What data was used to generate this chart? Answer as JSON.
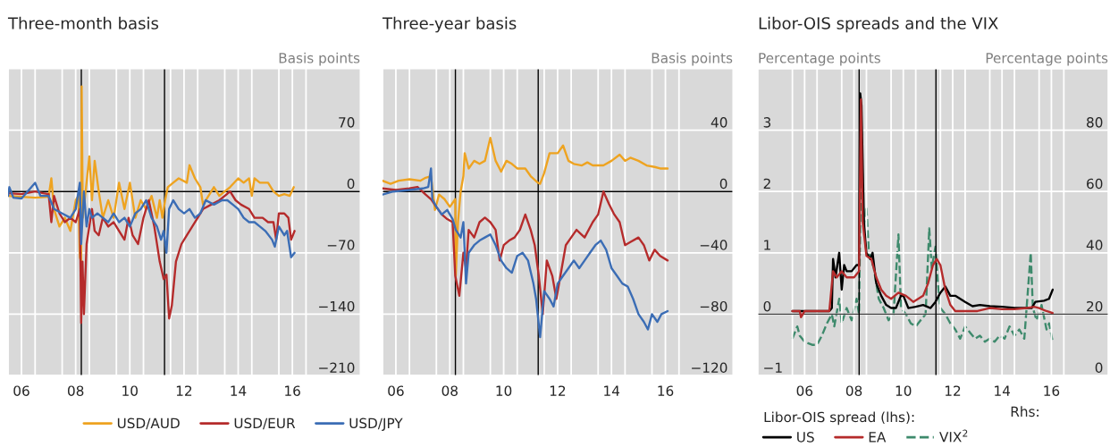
{
  "chart_data": [
    {
      "type": "line",
      "title": "Three-month basis",
      "ylabel": "Basis points",
      "xlim": [
        "2006-01-01",
        "2019-01-01"
      ],
      "ylim": [
        -210,
        140
      ],
      "xticks": [
        {
          "value": "2006-01-01",
          "label": null
        },
        {
          "value": "2007-01-01",
          "label": null
        },
        {
          "value": "2008-01-01",
          "label": null
        },
        {
          "value": "2009-01-01",
          "label": null
        },
        {
          "value": "2010-01-01",
          "label": null
        },
        {
          "value": "2011-01-01",
          "label": null
        },
        {
          "value": "2012-01-01",
          "label": null
        },
        {
          "value": "2013-01-01",
          "label": null
        },
        {
          "value": "2014-01-01",
          "label": null
        },
        {
          "value": "2015-01-01",
          "label": null
        },
        {
          "value": "2016-01-01",
          "label": null
        },
        {
          "value": "2017-01-01",
          "label": null
        },
        {
          "value": "2006-07-01",
          "label": "06"
        },
        {
          "value": "2008-07-01",
          "label": "08"
        },
        {
          "value": "2010-07-01",
          "label": "10"
        },
        {
          "value": "2012-07-01",
          "label": "12"
        },
        {
          "value": "2014-07-01",
          "label": "14"
        },
        {
          "value": "2016-07-01",
          "label": "16"
        }
      ],
      "yticks": [
        70,
        0,
        -70,
        -140,
        -210
      ],
      "grid": true,
      "legend": "bottom",
      "ref_lines": [
        {
          "axis": "y",
          "value": 0,
          "color": "#000000"
        },
        {
          "axis": "x",
          "value": "2008-09-15",
          "color": "#000000"
        },
        {
          "axis": "x",
          "value": "2011-10-12",
          "color": "#000000"
        }
      ],
      "series": [
        {
          "name": "USD/AUD",
          "color": "#eea320",
          "x": [
            "2006-01-01",
            "2006-07-02",
            "2007-01-01",
            "2007-07-02",
            "2007-08-08",
            "2007-09-13",
            "2007-11-25",
            "2008-02-06",
            "2008-04-20",
            "2008-07-02",
            "2008-08-08",
            "2008-08-26",
            "2008-09-13",
            "2008-09-20",
            "2008-10-05",
            "2009-01-01",
            "2009-02-06",
            "2009-03-14",
            "2009-05-08",
            "2009-07-02",
            "2009-09-13",
            "2009-11-25",
            "2010-02-06",
            "2010-04-20",
            "2010-07-02",
            "2010-09-13",
            "2010-11-25",
            "2011-02-06",
            "2011-04-20",
            "2011-07-02",
            "2011-08-08",
            "2011-09-13",
            "2011-10-20",
            "2011-11-25",
            "2012-02-06",
            "2012-04-20",
            "2012-08-08",
            "2012-09-13",
            "2012-11-25",
            "2013-02-06",
            "2013-03-14",
            "2013-05-27",
            "2013-08-08",
            "2013-10-20",
            "2014-01-01",
            "2014-03-14",
            "2014-07-02",
            "2014-09-13",
            "2014-11-25",
            "2015-01-01",
            "2015-02-06",
            "2015-04-20",
            "2015-08-08",
            "2015-10-20",
            "2016-01-01",
            "2016-03-14",
            "2016-05-27",
            "2016-07-20"
          ],
          "values": [
            -5,
            -6,
            -7,
            -6,
            15,
            -20,
            -40,
            -30,
            -45,
            -10,
            -5,
            -75,
            -80,
            120,
            -30,
            40,
            -10,
            35,
            0,
            -30,
            -10,
            -30,
            10,
            -20,
            10,
            -30,
            -10,
            -20,
            -5,
            -30,
            -10,
            -30,
            -10,
            5,
            10,
            15,
            10,
            30,
            15,
            5,
            -15,
            -5,
            5,
            -5,
            0,
            5,
            15,
            10,
            15,
            -5,
            15,
            10,
            10,
            0,
            -5,
            -3,
            -5,
            5
          ]
        },
        {
          "name": "USD/EUR",
          "color": "#b52b2b",
          "x": [
            "2006-01-01",
            "2006-07-02",
            "2007-01-01",
            "2007-04-20",
            "2007-07-02",
            "2007-08-08",
            "2007-09-13",
            "2007-11-25",
            "2008-02-06",
            "2008-04-20",
            "2008-07-02",
            "2008-08-26",
            "2008-09-13",
            "2008-10-01",
            "2008-10-20",
            "2008-11-25",
            "2009-01-01",
            "2009-02-06",
            "2009-03-14",
            "2009-05-08",
            "2009-07-02",
            "2009-09-13",
            "2009-11-25",
            "2010-02-06",
            "2010-04-20",
            "2010-06-14",
            "2010-08-08",
            "2010-10-20",
            "2011-01-01",
            "2011-03-14",
            "2011-05-27",
            "2011-08-08",
            "2011-10-01",
            "2011-11-07",
            "2011-12-13",
            "2012-01-19",
            "2012-03-14",
            "2012-05-27",
            "2012-08-08",
            "2012-10-20",
            "2013-01-01",
            "2013-03-14",
            "2013-07-02",
            "2013-10-20",
            "2014-01-01",
            "2014-03-14",
            "2014-05-27",
            "2014-08-08",
            "2014-11-25",
            "2015-02-06",
            "2015-05-27",
            "2015-08-08",
            "2015-10-20",
            "2015-11-25",
            "2016-01-01",
            "2016-03-14",
            "2016-05-08",
            "2016-06-14",
            "2016-07-31"
          ],
          "values": [
            -2,
            -3,
            0,
            -2,
            -3,
            -35,
            -5,
            -25,
            -35,
            -30,
            -35,
            -20,
            -150,
            -80,
            -140,
            -60,
            -40,
            -20,
            -45,
            -50,
            -30,
            -40,
            -35,
            -45,
            -55,
            -30,
            -50,
            -60,
            -30,
            -10,
            -40,
            -80,
            -100,
            -95,
            -145,
            -130,
            -80,
            -60,
            -50,
            -40,
            -30,
            -20,
            -15,
            -10,
            -5,
            0,
            -10,
            -15,
            -20,
            -30,
            -30,
            -35,
            -35,
            -55,
            -25,
            -25,
            -30,
            -55,
            -45
          ]
        },
        {
          "name": "USD/JPY",
          "color": "#3b6db5",
          "x": [
            "2006-01-01",
            "2006-01-19",
            "2006-03-14",
            "2006-07-02",
            "2007-01-01",
            "2007-03-14",
            "2007-07-02",
            "2007-09-13",
            "2008-01-01",
            "2008-04-20",
            "2008-07-02",
            "2008-08-26",
            "2008-09-13",
            "2008-10-20",
            "2008-11-25",
            "2009-01-01",
            "2009-02-06",
            "2009-04-20",
            "2009-07-02",
            "2009-09-13",
            "2009-11-25",
            "2010-02-06",
            "2010-04-20",
            "2010-07-02",
            "2010-09-13",
            "2010-11-25",
            "2011-02-06",
            "2011-04-20",
            "2011-07-02",
            "2011-08-26",
            "2011-10-01",
            "2011-11-07",
            "2011-12-13",
            "2012-02-06",
            "2012-04-20",
            "2012-07-02",
            "2012-09-13",
            "2012-11-25",
            "2013-02-06",
            "2013-04-20",
            "2013-08-08",
            "2013-11-25",
            "2014-02-06",
            "2014-04-20",
            "2014-07-02",
            "2014-09-13",
            "2014-11-25",
            "2015-02-06",
            "2015-04-20",
            "2015-07-02",
            "2015-10-01",
            "2015-11-07",
            "2016-01-01",
            "2016-03-14",
            "2016-04-20",
            "2016-06-14",
            "2016-07-31"
          ],
          "values": [
            -5,
            5,
            -7,
            -8,
            10,
            -5,
            -5,
            -20,
            -25,
            -30,
            -20,
            10,
            -60,
            0,
            -40,
            -20,
            -30,
            -25,
            -30,
            -35,
            -25,
            -35,
            -30,
            -40,
            -25,
            -20,
            -10,
            -30,
            -40,
            -55,
            -45,
            -70,
            -20,
            -10,
            -20,
            -25,
            -20,
            -30,
            -25,
            -10,
            -15,
            -10,
            -10,
            -15,
            -20,
            -30,
            -35,
            -35,
            -40,
            -45,
            -55,
            -63,
            -40,
            -50,
            -45,
            -75,
            -70
          ]
        }
      ]
    },
    {
      "type": "line",
      "title": "Three-year basis",
      "ylabel": "Basis points",
      "xlim": [
        "2006-01-01",
        "2019-01-01"
      ],
      "ylim": [
        -120,
        80
      ],
      "xticks": [
        {
          "value": "2006-01-01",
          "label": null
        },
        {
          "value": "2007-01-01",
          "label": null
        },
        {
          "value": "2008-01-01",
          "label": null
        },
        {
          "value": "2009-01-01",
          "label": null
        },
        {
          "value": "2010-01-01",
          "label": null
        },
        {
          "value": "2011-01-01",
          "label": null
        },
        {
          "value": "2012-01-01",
          "label": null
        },
        {
          "value": "2013-01-01",
          "label": null
        },
        {
          "value": "2014-01-01",
          "label": null
        },
        {
          "value": "2015-01-01",
          "label": null
        },
        {
          "value": "2016-01-01",
          "label": null
        },
        {
          "value": "2017-01-01",
          "label": null
        },
        {
          "value": "2006-07-01",
          "label": "06"
        },
        {
          "value": "2008-07-01",
          "label": "08"
        },
        {
          "value": "2010-07-01",
          "label": "10"
        },
        {
          "value": "2012-07-01",
          "label": "12"
        },
        {
          "value": "2014-07-01",
          "label": "14"
        },
        {
          "value": "2016-07-01",
          "label": "16"
        }
      ],
      "yticks": [
        40,
        0,
        -40,
        -80,
        -120
      ],
      "grid": true,
      "ref_lines": [
        {
          "axis": "y",
          "value": 0,
          "color": "#000000"
        },
        {
          "axis": "x",
          "value": "2008-09-15",
          "color": "#000000"
        },
        {
          "axis": "x",
          "value": "2011-10-12",
          "color": "#000000"
        }
      ],
      "series": [
        {
          "color": "#eea320",
          "x": [
            "2006-01-01",
            "2006-04-20",
            "2006-08-08",
            "2007-01-01",
            "2007-05-27",
            "2007-08-08",
            "2007-10-20",
            "2007-12-13",
            "2008-02-06",
            "2008-04-20",
            "2008-07-02",
            "2008-09-13",
            "2008-09-20",
            "2008-10-20",
            "2008-11-25",
            "2009-01-01",
            "2009-01-19",
            "2009-03-14",
            "2009-05-27",
            "2009-08-08",
            "2009-10-20",
            "2010-01-01",
            "2010-03-14",
            "2010-05-27",
            "2010-08-08",
            "2010-10-20",
            "2011-01-01",
            "2011-04-20",
            "2011-07-02",
            "2011-10-01",
            "2011-11-07",
            "2012-01-01",
            "2012-03-14",
            "2012-07-02",
            "2012-09-13",
            "2012-11-25",
            "2013-02-06",
            "2013-05-27",
            "2013-08-08",
            "2013-10-20",
            "2014-01-01",
            "2014-03-14",
            "2014-07-02",
            "2014-10-20",
            "2015-01-01",
            "2015-03-14",
            "2015-07-02",
            "2015-10-20",
            "2016-02-06",
            "2016-04-20",
            "2016-07-31"
          ],
          "values": [
            7,
            5,
            7,
            8,
            7,
            9,
            10,
            -12,
            -2,
            -5,
            -10,
            -5,
            -55,
            -20,
            0,
            10,
            25,
            15,
            20,
            18,
            20,
            35,
            20,
            13,
            20,
            18,
            15,
            15,
            10,
            6,
            5,
            12,
            25,
            25,
            30,
            20,
            18,
            17,
            19,
            17,
            17,
            17,
            20,
            24,
            20,
            22,
            20,
            17,
            16,
            15,
            15
          ]
        },
        {
          "color": "#b52b2b",
          "x": [
            "2006-01-01",
            "2006-07-02",
            "2007-01-01",
            "2007-04-20",
            "2007-08-08",
            "2007-10-20",
            "2008-01-01",
            "2008-03-14",
            "2008-05-27",
            "2008-08-08",
            "2008-09-13",
            "2008-11-07",
            "2009-01-01",
            "2009-02-06",
            "2009-03-14",
            "2009-05-27",
            "2009-08-08",
            "2009-10-20",
            "2010-01-01",
            "2010-03-14",
            "2010-05-08",
            "2010-07-02",
            "2010-09-13",
            "2010-11-25",
            "2011-02-06",
            "2011-04-20",
            "2011-07-02",
            "2011-08-26",
            "2011-10-20",
            "2011-12-13",
            "2012-02-06",
            "2012-04-20",
            "2012-06-14",
            "2012-08-08",
            "2012-10-20",
            "2013-01-01",
            "2013-03-14",
            "2013-07-02",
            "2013-10-20",
            "2014-01-01",
            "2014-03-14",
            "2014-05-27",
            "2014-08-08",
            "2014-10-20",
            "2015-01-01",
            "2015-03-14",
            "2015-07-02",
            "2015-09-13",
            "2015-11-25",
            "2016-02-06",
            "2016-04-20",
            "2016-07-31"
          ],
          "values": [
            2,
            1,
            2,
            3,
            -2,
            -5,
            -10,
            -15,
            -18,
            -20,
            -55,
            -68,
            -40,
            -50,
            -25,
            -30,
            -20,
            -17,
            -20,
            -25,
            -45,
            -35,
            -32,
            -30,
            -25,
            -15,
            -25,
            -35,
            -55,
            -80,
            -45,
            -55,
            -70,
            -55,
            -35,
            -30,
            -25,
            -30,
            -20,
            -15,
            0,
            -8,
            -15,
            -20,
            -35,
            -33,
            -30,
            -35,
            -45,
            -38,
            -42,
            -45
          ]
        },
        {
          "color": "#3b6db5",
          "x": [
            "2006-01-01",
            "2006-05-27",
            "2007-01-01",
            "2007-07-02",
            "2007-09-13",
            "2007-10-20",
            "2007-11-07",
            "2008-01-01",
            "2008-03-14",
            "2008-05-27",
            "2008-08-08",
            "2008-09-20",
            "2008-11-25",
            "2009-01-01",
            "2009-02-06",
            "2009-03-14",
            "2009-05-27",
            "2009-08-08",
            "2009-10-20",
            "2010-01-01",
            "2010-03-14",
            "2010-05-27",
            "2010-08-08",
            "2010-10-20",
            "2011-01-01",
            "2011-03-14",
            "2011-05-27",
            "2011-08-08",
            "2011-09-13",
            "2011-11-07",
            "2012-01-01",
            "2012-03-14",
            "2012-05-08",
            "2012-07-02",
            "2012-09-13",
            "2012-11-25",
            "2013-02-06",
            "2013-04-20",
            "2013-07-02",
            "2013-09-13",
            "2013-11-25",
            "2014-02-06",
            "2014-04-20",
            "2014-07-02",
            "2014-09-13",
            "2014-11-25",
            "2015-02-06",
            "2015-04-20",
            "2015-07-02",
            "2015-09-13",
            "2015-11-07",
            "2016-01-01",
            "2016-03-14",
            "2016-05-08",
            "2016-07-31"
          ],
          "values": [
            -2,
            0,
            1,
            2,
            3,
            15,
            -5,
            -10,
            -15,
            -12,
            -18,
            -25,
            -30,
            -20,
            -60,
            -40,
            -35,
            -32,
            -30,
            -28,
            -35,
            -45,
            -50,
            -53,
            -42,
            -40,
            -45,
            -60,
            -70,
            -95,
            -65,
            -70,
            -75,
            -60,
            -55,
            -50,
            -45,
            -50,
            -45,
            -40,
            -35,
            -32,
            -38,
            -50,
            -55,
            -60,
            -62,
            -70,
            -80,
            -85,
            -90,
            -80,
            -85,
            -80,
            -78
          ]
        }
      ]
    },
    {
      "type": "line",
      "title": "Libor-OIS spreads and the VIX",
      "ylabel": "Percentage points",
      "y2label": "Percentage points",
      "xlim": [
        "2004-08-08",
        "2018-10-20"
      ],
      "ylim": [
        -1,
        4
      ],
      "y2lim": [
        0,
        100
      ],
      "xticks": [
        {
          "value": "2006-01-01",
          "label": null
        },
        {
          "value": "2007-01-01",
          "label": null
        },
        {
          "value": "2008-01-01",
          "label": null
        },
        {
          "value": "2009-01-01",
          "label": null
        },
        {
          "value": "2010-01-01",
          "label": null
        },
        {
          "value": "2011-01-01",
          "label": null
        },
        {
          "value": "2012-01-01",
          "label": null
        },
        {
          "value": "2013-01-01",
          "label": null
        },
        {
          "value": "2014-01-01",
          "label": null
        },
        {
          "value": "2015-01-01",
          "label": null
        },
        {
          "value": "2016-01-01",
          "label": null
        },
        {
          "value": "2017-01-01",
          "label": null
        },
        {
          "value": "2006-07-01",
          "label": "06"
        },
        {
          "value": "2008-07-01",
          "label": "08"
        },
        {
          "value": "2010-07-01",
          "label": "10"
        },
        {
          "value": "2012-07-01",
          "label": "12"
        },
        {
          "value": "2014-07-01",
          "label": "14"
        },
        {
          "value": "2016-07-01",
          "label": "16"
        }
      ],
      "yticks": [
        3,
        2,
        1,
        0,
        -1
      ],
      "y2ticks": [
        80,
        60,
        40,
        20,
        0
      ],
      "grid": true,
      "legend": "bottom left",
      "legend_title": "Libor-OIS spread (lhs):",
      "annotations": [
        "Rhs:"
      ],
      "ref_lines": [
        {
          "axis": "y",
          "value": 0,
          "color": "#404040"
        },
        {
          "axis": "x",
          "value": "2008-09-15",
          "color": "#000000"
        },
        {
          "axis": "x",
          "value": "2011-10-27",
          "color": "#000000"
        }
      ],
      "series": [
        {
          "name": "US",
          "color": "#000000",
          "x": [
            "2006-01-01",
            "2006-07-02",
            "2007-01-01",
            "2007-07-02",
            "2007-08-08",
            "2007-08-26",
            "2007-10-01",
            "2007-11-25",
            "2008-01-01",
            "2008-02-06",
            "2008-03-14",
            "2008-05-27",
            "2008-08-08",
            "2008-09-13",
            "2008-10-01",
            "2008-10-20",
            "2008-11-25",
            "2009-01-01",
            "2009-02-25",
            "2009-04-02",
            "2009-05-27",
            "2009-08-08",
            "2009-10-20",
            "2010-01-01",
            "2010-03-14",
            "2010-05-27",
            "2010-07-02",
            "2010-09-13",
            "2011-01-01",
            "2011-04-20",
            "2011-08-08",
            "2011-10-20",
            "2012-01-01",
            "2012-03-14",
            "2012-05-27",
            "2012-08-08",
            "2012-10-20",
            "2013-01-01",
            "2013-04-20",
            "2013-08-08",
            "2014-01-01",
            "2014-07-02",
            "2015-01-01",
            "2015-07-02",
            "2015-09-13",
            "2015-11-07",
            "2016-03-14",
            "2016-05-27",
            "2016-07-20"
          ],
          "values": [
            0.05,
            0.05,
            0.05,
            0.05,
            0.1,
            0.9,
            0.6,
            1.0,
            0.4,
            0.8,
            0.7,
            0.7,
            0.8,
            0.8,
            3.6,
            3.4,
            1.5,
            1.0,
            0.9,
            1.0,
            0.5,
            0.3,
            0.15,
            0.1,
            0.1,
            0.3,
            0.3,
            0.1,
            0.12,
            0.15,
            0.1,
            0.2,
            0.35,
            0.45,
            0.3,
            0.3,
            0.25,
            0.2,
            0.13,
            0.15,
            0.13,
            0.12,
            0.1,
            0.1,
            0.1,
            0.2,
            0.22,
            0.25,
            0.4
          ]
        },
        {
          "name": "EA",
          "color": "#b52b2b",
          "x": [
            "2006-01-01",
            "2006-04-20",
            "2006-05-08",
            "2006-07-02",
            "2007-07-02",
            "2007-08-26",
            "2007-10-20",
            "2008-01-01",
            "2008-03-14",
            "2008-07-02",
            "2008-09-13",
            "2008-10-12",
            "2008-11-07",
            "2009-01-01",
            "2009-03-14",
            "2009-05-27",
            "2009-08-08",
            "2009-10-20",
            "2010-01-01",
            "2010-04-20",
            "2010-08-08",
            "2010-11-25",
            "2011-02-06",
            "2011-04-20",
            "2011-07-02",
            "2011-09-13",
            "2011-11-07",
            "2012-01-01",
            "2012-03-14",
            "2012-05-27",
            "2012-08-08",
            "2013-01-01",
            "2013-07-02",
            "2014-01-01",
            "2014-07-02",
            "2015-01-01",
            "2015-07-02",
            "2015-10-20",
            "2016-01-01",
            "2016-04-20",
            "2016-07-20"
          ],
          "values": [
            0.05,
            0.05,
            -0.05,
            0.05,
            0.05,
            0.7,
            0.6,
            0.7,
            0.6,
            0.6,
            0.7,
            3.5,
            1.5,
            0.95,
            0.9,
            0.6,
            0.4,
            0.3,
            0.25,
            0.35,
            0.3,
            0.2,
            0.25,
            0.3,
            0.5,
            0.8,
            0.9,
            0.8,
            0.4,
            0.15,
            0.05,
            0.05,
            0.05,
            0.1,
            0.08,
            0.08,
            0.1,
            0.12,
            0.1,
            0.05,
            0.02
          ]
        },
        {
          "name": "VIX$^{2}$",
          "color": "#3e8a6c",
          "axis": "y2",
          "line_style": "dashed",
          "x": [
            "2006-01-01",
            "2006-03-14",
            "2006-04-20",
            "2006-07-02",
            "2006-10-20",
            "2007-01-01",
            "2007-03-14",
            "2007-05-27",
            "2007-08-08",
            "2007-09-13",
            "2007-11-25",
            "2008-01-01",
            "2008-03-14",
            "2008-05-27",
            "2008-08-08",
            "2008-09-13",
            "2008-10-20",
            "2008-11-07",
            "2008-11-25",
            "2009-01-01",
            "2009-02-06",
            "2009-04-20",
            "2009-07-02",
            "2009-09-13",
            "2009-11-25",
            "2010-02-06",
            "2010-04-20",
            "2010-05-27",
            "2010-08-08",
            "2010-10-20",
            "2011-01-01",
            "2011-03-14",
            "2011-05-27",
            "2011-07-20",
            "2011-08-26",
            "2011-10-20",
            "2011-11-25",
            "2012-01-01",
            "2012-03-14",
            "2012-05-27",
            "2012-08-08",
            "2012-10-20",
            "2013-01-01",
            "2013-03-14",
            "2013-05-27",
            "2013-08-08",
            "2013-10-20",
            "2014-01-01",
            "2014-03-14",
            "2014-05-27",
            "2014-08-08",
            "2014-10-20",
            "2015-01-01",
            "2015-03-14",
            "2015-05-27",
            "2015-08-30",
            "2015-10-01",
            "2015-11-25",
            "2016-02-06",
            "2016-04-20",
            "2016-05-27",
            "2016-07-20"
          ],
          "values": [
            12,
            16,
            13,
            11,
            10,
            10,
            13,
            17,
            20,
            16,
            25,
            17,
            22,
            18,
            25,
            20,
            80,
            60,
            48,
            55,
            40,
            35,
            25,
            22,
            18,
            20,
            46,
            22,
            20,
            17,
            16,
            18,
            20,
            48,
            35,
            42,
            30,
            22,
            20,
            17,
            15,
            12,
            16,
            14,
            12,
            13,
            11,
            12,
            11,
            13,
            12,
            16,
            13,
            15,
            12,
            40,
            22,
            18,
            23,
            15,
            17,
            11
          ]
        }
      ]
    }
  ]
}
